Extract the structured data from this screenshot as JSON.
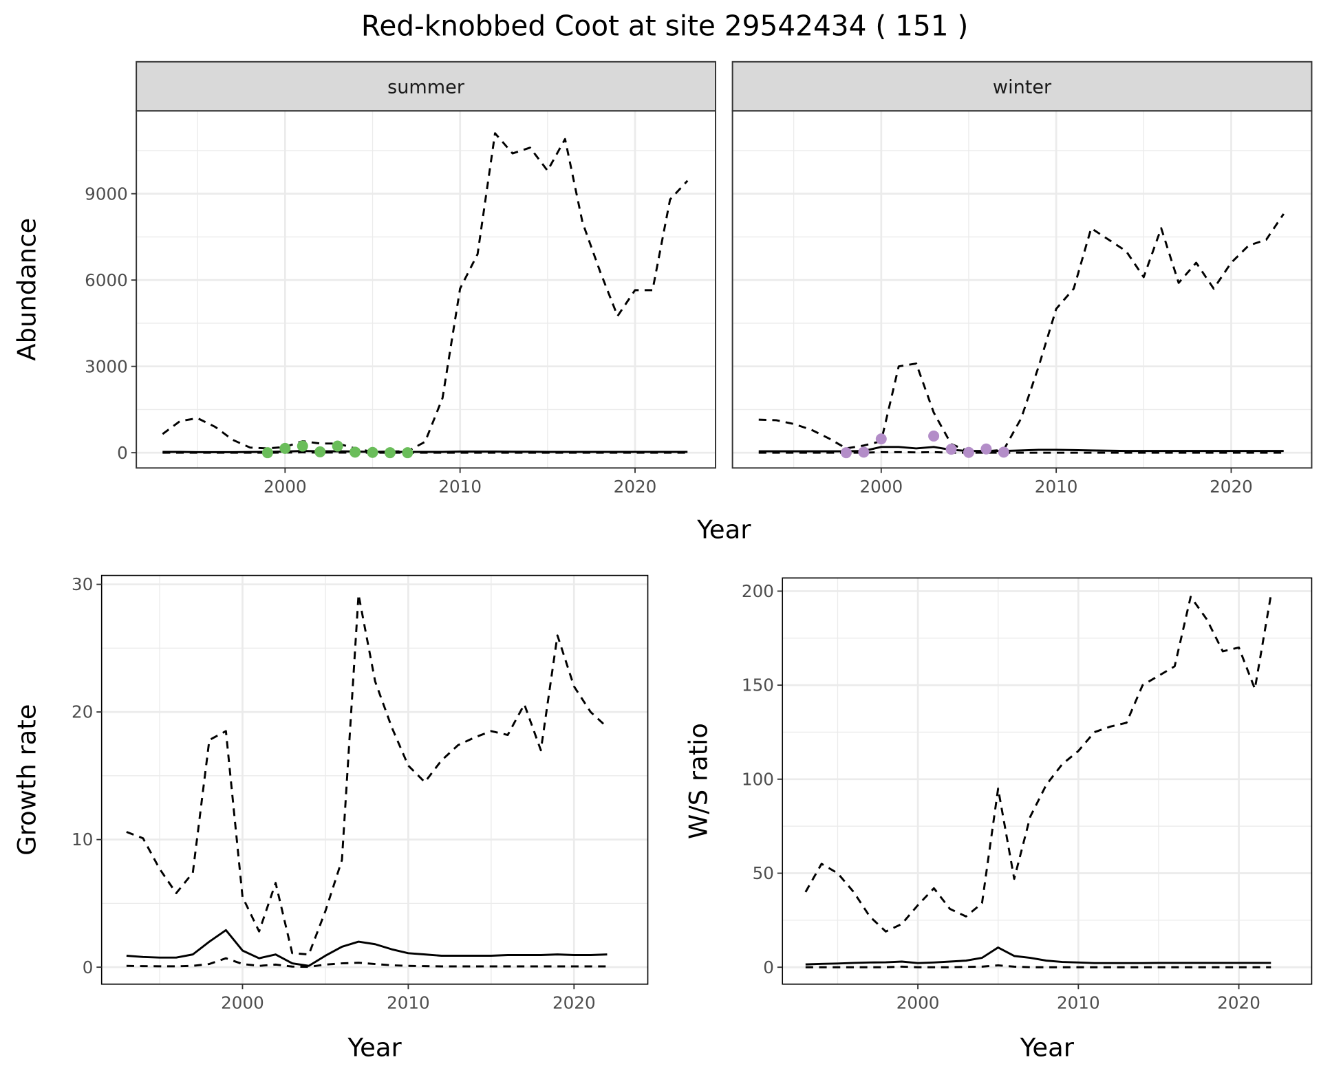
{
  "title": "Red-knobbed Coot at site 29542434 ( 151 )",
  "colors": {
    "summer_points": "#6ABD5A",
    "winter_points": "#B38DC8",
    "strip_fill": "#D9D9D9",
    "grid": "#EBEBEB"
  },
  "chart_data": [
    {
      "type": "line",
      "facet": "summer",
      "xlabel": "Year",
      "ylabel": "Abundance",
      "xlim": [
        1991.5,
        2024.6
      ],
      "ylim": [
        -530,
        11880
      ],
      "xticks": [
        2000,
        2010,
        2020
      ],
      "yticks": [
        0,
        3000,
        6000,
        9000
      ],
      "grid": true,
      "x": [
        1993,
        1994,
        1995,
        1996,
        1997,
        1998,
        1999,
        2000,
        2001,
        2002,
        2003,
        2004,
        2005,
        2006,
        2007,
        2008,
        2009,
        2010,
        2011,
        2012,
        2013,
        2014,
        2015,
        2016,
        2017,
        2018,
        2019,
        2020,
        2021,
        2022,
        2023
      ],
      "series": [
        {
          "style": "dashed",
          "values": [
            650,
            1100,
            1200,
            900,
            450,
            180,
            150,
            200,
            400,
            320,
            320,
            150,
            30,
            40,
            50,
            380,
            1900,
            5700,
            6900,
            11100,
            10400,
            10600,
            9800,
            10900,
            8000,
            6300,
            4750,
            5650,
            5650,
            8800,
            9450
          ]
        },
        {
          "style": "solid",
          "values": [
            30,
            30,
            20,
            20,
            20,
            25,
            30,
            40,
            60,
            50,
            50,
            40,
            30,
            30,
            30,
            30,
            30,
            40,
            40,
            40,
            35,
            35,
            30,
            30,
            30,
            30,
            30,
            30,
            30,
            30,
            30
          ]
        },
        {
          "style": "dashed",
          "values": [
            0,
            0,
            0,
            0,
            0,
            0,
            0,
            5,
            10,
            5,
            5,
            0,
            0,
            0,
            0,
            0,
            0,
            0,
            0,
            0,
            0,
            0,
            0,
            0,
            0,
            0,
            0,
            0,
            0,
            0,
            0
          ]
        }
      ],
      "points": {
        "x": [
          1999,
          2000,
          2001,
          2002,
          2003,
          2004,
          2005,
          2006,
          2007
        ],
        "y": [
          0,
          150,
          230,
          30,
          230,
          20,
          10,
          0,
          0
        ]
      }
    },
    {
      "type": "line",
      "facet": "winter",
      "xlabel": "Year",
      "ylabel": "Abundance",
      "xlim": [
        1991.5,
        2024.6
      ],
      "ylim": [
        -530,
        11880
      ],
      "xticks": [
        2000,
        2010,
        2020
      ],
      "yticks": [
        0,
        3000,
        6000,
        9000
      ],
      "grid": true,
      "x": [
        1993,
        1994,
        1995,
        1996,
        1997,
        1998,
        1999,
        2000,
        2001,
        2002,
        2003,
        2004,
        2005,
        2006,
        2007,
        2008,
        2009,
        2010,
        2011,
        2012,
        2013,
        2014,
        2015,
        2016,
        2017,
        2018,
        2019,
        2020,
        2021,
        2022,
        2023
      ],
      "series": [
        {
          "style": "dashed",
          "values": [
            1150,
            1130,
            1000,
            800,
            500,
            150,
            250,
            400,
            3000,
            3100,
            1400,
            300,
            50,
            50,
            100,
            1200,
            3000,
            5000,
            5700,
            7800,
            7400,
            7000,
            6100,
            7800,
            5900,
            6600,
            5700,
            6600,
            7200,
            7400,
            8300
          ]
        },
        {
          "style": "solid",
          "values": [
            50,
            50,
            50,
            50,
            50,
            50,
            60,
            200,
            200,
            150,
            200,
            100,
            60,
            60,
            60,
            80,
            100,
            100,
            90,
            80,
            70,
            60,
            60,
            60,
            60,
            60,
            60,
            60,
            60,
            60,
            60
          ]
        },
        {
          "style": "dashed",
          "values": [
            0,
            0,
            0,
            0,
            0,
            0,
            0,
            20,
            20,
            10,
            20,
            0,
            0,
            0,
            0,
            0,
            0,
            0,
            0,
            0,
            0,
            0,
            0,
            0,
            0,
            0,
            0,
            0,
            0,
            0,
            0
          ]
        }
      ],
      "points": {
        "x": [
          1998,
          1999,
          2000,
          2003,
          2004,
          2005,
          2006,
          2007
        ],
        "y": [
          0,
          20,
          480,
          580,
          120,
          10,
          130,
          20
        ]
      }
    },
    {
      "type": "line",
      "xlabel": "Year",
      "ylabel": "Growth rate",
      "xlim": [
        1991.5,
        2024.45
      ],
      "ylim": [
        -1.33,
        30.7
      ],
      "xticks": [
        2000,
        2010,
        2020
      ],
      "yticks": [
        0,
        10,
        20,
        30
      ],
      "grid": true,
      "x": [
        1993,
        1994,
        1995,
        1996,
        1997,
        1998,
        1999,
        2000,
        2001,
        2002,
        2003,
        2004,
        2005,
        2006,
        2007,
        2008,
        2009,
        2010,
        2011,
        2012,
        2013,
        2014,
        2015,
        2016,
        2017,
        2018,
        2019,
        2020,
        2021,
        2022
      ],
      "series": [
        {
          "style": "dashed",
          "values": [
            10.6,
            10.1,
            7.7,
            5.8,
            7.4,
            17.8,
            18.5,
            5.5,
            2.8,
            6.6,
            1.1,
            1.0,
            4.4,
            8.4,
            29.2,
            22.4,
            18.8,
            15.8,
            14.5,
            16.2,
            17.4,
            18.0,
            18.5,
            18.2,
            20.6,
            17.0,
            26.0,
            22.0,
            20.0,
            18.8
          ]
        },
        {
          "style": "solid",
          "values": [
            0.9,
            0.8,
            0.75,
            0.75,
            1.0,
            2.0,
            2.9,
            1.3,
            0.7,
            1.0,
            0.3,
            0.1,
            0.9,
            1.6,
            2.0,
            1.8,
            1.4,
            1.1,
            1.0,
            0.9,
            0.9,
            0.9,
            0.9,
            0.95,
            0.95,
            0.95,
            1.0,
            0.95,
            0.95,
            1.0
          ]
        },
        {
          "style": "dashed",
          "values": [
            0.1,
            0.08,
            0.07,
            0.07,
            0.1,
            0.25,
            0.7,
            0.25,
            0.1,
            0.2,
            0.05,
            0.02,
            0.2,
            0.3,
            0.35,
            0.25,
            0.15,
            0.1,
            0.08,
            0.06,
            0.06,
            0.06,
            0.06,
            0.06,
            0.06,
            0.06,
            0.06,
            0.06,
            0.06,
            0.06
          ]
        }
      ]
    },
    {
      "type": "line",
      "xlabel": "Year",
      "ylabel": "W/S ratio",
      "xlim": [
        1991.56,
        2024.54
      ],
      "ylim": [
        -9,
        207
      ],
      "xticks": [
        2000,
        2010,
        2020
      ],
      "yticks": [
        0,
        50,
        100,
        150,
        200
      ],
      "grid": true,
      "x": [
        1993,
        1994,
        1995,
        1996,
        1997,
        1998,
        1999,
        2000,
        2001,
        2002,
        2003,
        2004,
        2005,
        2006,
        2007,
        2008,
        2009,
        2010,
        2011,
        2012,
        2013,
        2014,
        2015,
        2016,
        2017,
        2018,
        2019,
        2020,
        2021,
        2022
      ],
      "series": [
        {
          "style": "dashed",
          "values": [
            40,
            55,
            50,
            40,
            27,
            19,
            23,
            33,
            42,
            31,
            27,
            34,
            95,
            47,
            80,
            97,
            108,
            115,
            125,
            128,
            130,
            150,
            155,
            160,
            197,
            185,
            168,
            170,
            148,
            198
          ]
        },
        {
          "style": "solid",
          "values": [
            1.5,
            1.8,
            2,
            2.3,
            2.5,
            2.6,
            3,
            2.2,
            2.5,
            3,
            3.5,
            5,
            10.5,
            6,
            5,
            3.5,
            2.8,
            2.5,
            2.2,
            2.2,
            2.2,
            2.2,
            2.3,
            2.3,
            2.3,
            2.3,
            2.3,
            2.3,
            2.3,
            2.3
          ]
        },
        {
          "style": "dashed",
          "values": [
            0,
            0,
            0,
            0,
            0,
            0,
            0.3,
            0,
            0,
            0,
            0.2,
            0.3,
            1,
            0.3,
            0,
            0,
            0,
            0,
            0,
            0,
            0,
            0,
            0,
            0,
            0,
            0,
            0,
            0,
            0,
            0
          ]
        }
      ]
    }
  ]
}
